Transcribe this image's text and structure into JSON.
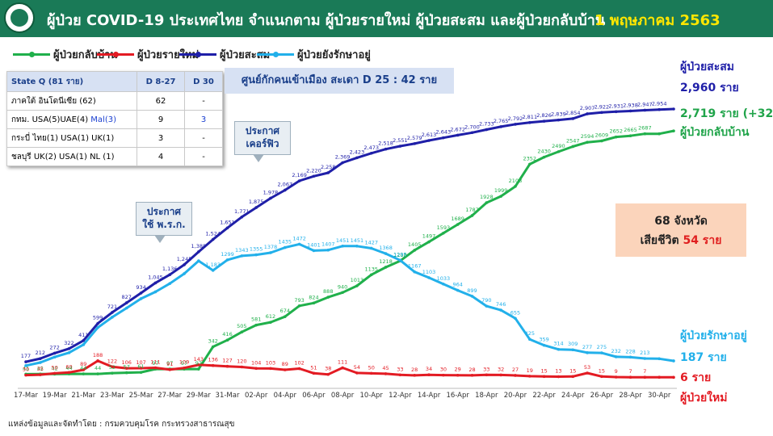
{
  "header": {
    "title": "ผู้ป่วย COVID-19 ประเทศไทย จำแนกตาม ผู้ป่วยรายใหม่ ผู้ป่วยสะสม  และผู้ป่วยกลับบ้าน",
    "date": "1 พฤษภาคม 2563",
    "logo_icon": "ministry-seal-icon"
  },
  "legend": [
    {
      "label": "ผู้ป่วยกลับบ้าน",
      "color": "#20b04b"
    },
    {
      "label": "ผู้ป่วยรายใหม่",
      "color": "#e31b23"
    },
    {
      "label": "ผู้ป่วยสะสม",
      "color": "#1f1fa8"
    },
    {
      "label": "ผู้ป่วยยังรักษาอยู่",
      "color": "#22b0ea"
    }
  ],
  "state_table": {
    "headers": [
      "State Q   (81 ราย)",
      "D 8-27",
      "D 30"
    ],
    "rows": [
      [
        "ภาคใต้ อินโดนีเซีย  (62)",
        "62",
        "-"
      ],
      [
        "กทม. USA(5)UAE(4) ",
        "9",
        "3"
      ],
      [
        "กระบี่ ไทย(1) USA(1) UK(1)",
        "3",
        "-"
      ],
      [
        "ชลบุรี UK(2) USA(1) NL (1)",
        "4",
        "-"
      ]
    ],
    "row2_highlight": "Mal(3)"
  },
  "district_box": "ศูนย์กักคนเข้าเมือง สะเดา D 25 : 42 ราย",
  "callouts": {
    "curfew": [
      "ประกาศ",
      "เคอร์ฟิว"
    ],
    "emergency": [
      "ประกาศ",
      "ใช้ พ.ร.ก."
    ]
  },
  "info_box": {
    "line1": "68 จังหวัด",
    "line2_prefix": "เสียชีวิต",
    "line2_value": "54 ราย"
  },
  "right_labels": {
    "cumulative_title": "ผู้ป่วยสะสม",
    "cumulative_value": "2,960 ราย",
    "recovered_value": "2,719 ราย (+32)",
    "recovered_title": "ผู้ป่วยกลับบ้าน",
    "active_title": "ผู้ป่วยรักษาอยู่",
    "active_value": "187 ราย",
    "new_value": "6 ราย",
    "new_title": "ผู้ป่วยใหม่"
  },
  "source": "แหล่งข้อมูลและจัดทำโดย : กรมควบคุมโรค กระทรวงสาธารณสุข",
  "chart_data": {
    "type": "line",
    "x": [
      "17-Mar",
      "18-Mar",
      "19-Mar",
      "20-Mar",
      "21-Mar",
      "22-Mar",
      "23-Mar",
      "24-Mar",
      "25-Mar",
      "26-Mar",
      "27-Mar",
      "28-Mar",
      "29-Mar",
      "30-Mar",
      "31-Mar",
      "01-Apr",
      "02-Apr",
      "03-Apr",
      "04-Apr",
      "05-Apr",
      "06-Apr",
      "07-Apr",
      "08-Apr",
      "09-Apr",
      "10-Apr",
      "11-Apr",
      "12-Apr",
      "13-Apr",
      "14-Apr",
      "15-Apr",
      "16-Apr",
      "17-Apr",
      "18-Apr",
      "19-Apr",
      "20-Apr",
      "21-Apr",
      "22-Apr",
      "23-Apr",
      "24-Apr",
      "25-Apr",
      "26-Apr",
      "27-Apr",
      "28-Apr",
      "29-Apr",
      "30-Apr",
      "01-May"
    ],
    "x_tick_labels": [
      "17-Mar",
      "19-Mar",
      "21-Mar",
      "23-Mar",
      "25-Mar",
      "27-Mar",
      "29-Mar",
      "31-Mar",
      "02-Apr",
      "04-Apr",
      "06-Apr",
      "08-Apr",
      "10-Apr",
      "12-Apr",
      "14-Apr",
      "16-Apr",
      "18-Apr",
      "20-Apr",
      "22-Apr",
      "24-Apr",
      "26-Apr",
      "28-Apr",
      "30-Apr"
    ],
    "series": [
      {
        "name": "ผู้ป่วยสะสม",
        "color": "#1f1fa8",
        "values": [
          177,
          212,
          272,
          322,
          411,
          599,
          721,
          827,
          934,
          1045,
          1136,
          1245,
          1388,
          1524,
          1651,
          1771,
          1875,
          1978,
          2067,
          2169,
          2220,
          2258,
          2369,
          2423,
          2473,
          2518,
          2551,
          2579,
          2613,
          2643,
          2672,
          2700,
          2733,
          2765,
          2792,
          2811,
          2826,
          2839,
          2854,
          2907,
          2922,
          2931,
          2938,
          2947,
          2954,
          2960
        ],
        "labels": [
          "177",
          "212",
          "272",
          "322",
          "411",
          "599",
          "721",
          "827",
          "934",
          "1,045",
          "1,136",
          "1,245",
          "1,388",
          "1,524",
          "1,651",
          "1,771",
          "1,875",
          "1,978",
          "2,067",
          "2,169",
          "2,220",
          "2,258",
          "2,369",
          "2,423",
          "2,473",
          "2,518",
          "2,551",
          "2,579",
          "2,613",
          "2,643",
          "2,672",
          "2,700",
          "2,733",
          "2,765",
          "2,792",
          "2,811",
          "2,826",
          "2,839",
          "2,854",
          "2,907",
          "2,922",
          "2,931",
          "2,938",
          "2,947",
          "2,954",
          ""
        ]
      },
      {
        "name": "ผู้ป่วยกลับบ้าน",
        "color": "#20b04b",
        "values": [
          41,
          42,
          42,
          44,
          44,
          44,
          52,
          57,
          61,
          97,
          97,
          97,
          97,
          342,
          416,
          505,
          581,
          612,
          674,
          793,
          824,
          888,
          940,
          1013,
          1135,
          1218,
          1288,
          1405,
          1497,
          1593,
          1689,
          1787,
          1928,
          1999,
          2108,
          2352,
          2430,
          2490,
          2547,
          2594,
          2609,
          2652,
          2665,
          2687,
          2687,
          2719
        ],
        "labels": [
          "41",
          "42",
          "42",
          "44",
          "44",
          "44",
          "52",
          "57",
          "61",
          "97",
          "97",
          "97",
          "97",
          "342",
          "416",
          "505",
          "581",
          "612",
          "674",
          "793",
          "824",
          "888",
          "940",
          "1013",
          "1135",
          "1218",
          "1288",
          "1405",
          "1497",
          "1593",
          "1689",
          "1787",
          "1928",
          "1999",
          "2108",
          "2352",
          "2430",
          "2490",
          "2547",
          "2594",
          "2609",
          "2652",
          "2665",
          "2687",
          "",
          ""
        ]
      },
      {
        "name": "ผู้ป่วยยังรักษาอยู่",
        "color": "#22b0ea",
        "values": [
          135,
          169,
          229,
          277,
          366,
          554,
          668,
          769,
          872,
          947,
          1038,
          1147,
          1288,
          1183,
          1299,
          1343,
          1355,
          1378,
          1435,
          1472,
          1401,
          1407,
          1451,
          1451,
          1427,
          1368,
          1295,
          1167,
          1103,
          1033,
          964,
          899,
          790,
          746,
          655,
          425,
          359,
          314,
          309,
          277,
          275,
          232,
          228,
          213,
          211,
          187
        ],
        "labels": [
          "",
          "",
          "",
          "",
          "",
          "",
          "",
          "",
          "",
          "",
          "",
          "",
          "",
          "1,183",
          "1299",
          "1343",
          "1355",
          "1378",
          "1435",
          "1472",
          "1401",
          "1407",
          "1451",
          "1451",
          "1427",
          "1368",
          "1295",
          "1167",
          "1103",
          "1033",
          "964",
          "899",
          "790",
          "746",
          "655",
          "425",
          "359",
          "314",
          "309",
          "277",
          "275",
          "232",
          "228",
          "213",
          "",
          ""
        ]
      },
      {
        "name": "ผู้ป่วยรายใหม่",
        "color": "#e31b23",
        "values": [
          30,
          35,
          50,
          60,
          89,
          188,
          122,
          106,
          107,
          111,
          91,
          109,
          143,
          136,
          127,
          120,
          104,
          103,
          89,
          102,
          51,
          38,
          111,
          54,
          50,
          45,
          33,
          28,
          34,
          30,
          29,
          28,
          33,
          32,
          27,
          19,
          15,
          13,
          15,
          53,
          15,
          9,
          7,
          7,
          7,
          6
        ],
        "labels": [
          "30",
          "35",
          "50",
          "60",
          "89",
          "188",
          "122",
          "106",
          "107",
          "111",
          "91",
          "109",
          "143",
          "136",
          "127",
          "120",
          "104",
          "103",
          "89",
          "102",
          "51",
          "38",
          "111",
          "54",
          "50",
          "45",
          "33",
          "28",
          "34",
          "30",
          "29",
          "28",
          "33",
          "32",
          "27",
          "19",
          "15",
          "13",
          "15",
          "53",
          "15",
          "9",
          "7",
          "7",
          "",
          ""
        ]
      }
    ],
    "ylim": [
      0,
      3200
    ]
  }
}
